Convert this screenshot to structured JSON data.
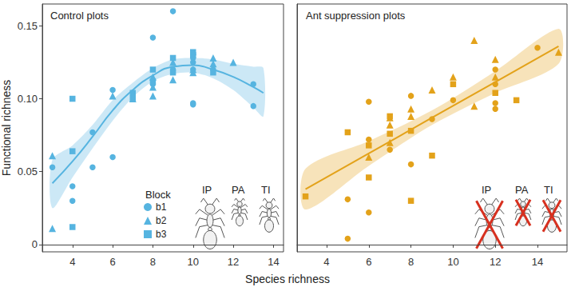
{
  "xlabel": "Species richness",
  "chart_data": [
    {
      "type": "scatter",
      "title": "Control plots",
      "ylabel": "Functional richness",
      "xlim": [
        2.5,
        14.5
      ],
      "xticks": [
        4,
        6,
        8,
        10,
        12,
        14
      ],
      "ylim": [
        -0.005,
        0.165
      ],
      "yticks": [
        0,
        0.05,
        {
          "value": 0.1,
          "label": "0.10"
        },
        0.15
      ],
      "grid": false,
      "color": "#56b4e0",
      "legend": "lower right",
      "legend_title": "Block",
      "annotations": [
        "IP",
        "PA",
        "TI"
      ],
      "series": [
        {
          "name": "b1",
          "marker": "circle",
          "x": [
            3,
            4,
            4,
            5,
            5,
            6,
            6,
            8,
            8,
            9,
            9,
            10,
            10,
            10,
            10,
            10,
            10,
            11,
            13,
            13
          ],
          "values": [
            0.053,
            0.04,
            0.03,
            0.053,
            0.077,
            0.06,
            0.106,
            0.142,
            0.11,
            0.16,
            0.12,
            0.13,
            0.128,
            0.125,
            0.12,
            0.097,
            0.096,
            0.12,
            0.11,
            0.095
          ]
        },
        {
          "name": "b2",
          "marker": "triangle",
          "x": [
            3,
            3,
            6,
            7,
            8,
            8,
            8,
            9,
            9,
            10,
            10,
            11,
            11,
            12
          ],
          "values": [
            0.061,
            0.011,
            0.102,
            0.1,
            0.102,
            0.108,
            0.115,
            0.125,
            0.113,
            0.118,
            0.12,
            0.128,
            0.124,
            0.125
          ]
        },
        {
          "name": "b3",
          "marker": "square",
          "x": [
            4,
            4,
            4,
            7,
            7,
            8,
            8,
            9,
            9,
            10,
            10,
            11
          ],
          "values": [
            0.1,
            0.064,
            0.012,
            0.104,
            0.1,
            0.12,
            0.112,
            0.128,
            0.118,
            0.13,
            0.132,
            0.118
          ]
        }
      ],
      "fit": {
        "x": [
          3,
          4,
          5,
          6,
          7,
          8,
          9,
          10,
          11,
          12,
          13,
          13.5
        ],
        "values": [
          0.042,
          0.057,
          0.074,
          0.092,
          0.106,
          0.116,
          0.122,
          0.123,
          0.12,
          0.115,
          0.108,
          0.104
        ],
        "lower": [
          0.025,
          0.046,
          0.066,
          0.085,
          0.101,
          0.112,
          0.117,
          0.118,
          0.114,
          0.106,
          0.094,
          0.088
        ],
        "upper": [
          0.058,
          0.068,
          0.082,
          0.099,
          0.111,
          0.121,
          0.127,
          0.128,
          0.127,
          0.124,
          0.122,
          0.121
        ]
      }
    },
    {
      "type": "scatter",
      "title": "Ant suppression plots",
      "xlim": [
        2.6,
        15.4
      ],
      "xticks": [
        4,
        6,
        8,
        10,
        12,
        14
      ],
      "ylim": [
        -0.005,
        0.165
      ],
      "yticks": [
        0,
        0.05,
        {
          "value": 0.1,
          "label": "0.10"
        },
        0.15
      ],
      "grid": false,
      "tick_labels": "x",
      "color": "#e3a21a",
      "annotations": [
        "IP",
        "PA",
        "TI"
      ],
      "series": [
        {
          "name": "b1",
          "marker": "circle",
          "x": [
            5,
            5,
            6,
            6,
            6,
            7,
            8,
            8,
            9,
            10,
            12,
            12,
            12,
            12,
            14
          ],
          "values": [
            0.004,
            0.031,
            0.098,
            0.022,
            0.072,
            0.065,
            0.055,
            0.102,
            0.086,
            0.099,
            0.097,
            0.093,
            0.12,
            0.11,
            0.135
          ]
        },
        {
          "name": "b2",
          "marker": "triangle",
          "x": [
            6,
            7,
            7,
            7,
            8,
            8,
            9,
            10,
            11,
            11,
            12,
            12,
            15
          ],
          "values": [
            0.06,
            0.087,
            0.082,
            0.07,
            0.093,
            0.088,
            0.106,
            0.115,
            0.14,
            0.095,
            0.127,
            0.115,
            0.132
          ]
        },
        {
          "name": "b3",
          "marker": "square",
          "x": [
            3,
            5,
            6,
            6,
            7,
            7,
            8,
            8,
            9,
            10,
            12,
            13
          ],
          "values": [
            0.033,
            0.077,
            0.046,
            0.068,
            0.076,
            0.088,
            0.078,
            0.03,
            0.061,
            0.11,
            0.104,
            0.099
          ]
        }
      ],
      "fit": {
        "x": [
          3,
          6,
          9,
          12,
          15
        ],
        "values": [
          0.038,
          0.0625,
          0.087,
          0.1115,
          0.136
        ],
        "lower": [
          0.024,
          0.054,
          0.082,
          0.104,
          0.124
        ],
        "upper": [
          0.052,
          0.071,
          0.092,
          0.119,
          0.148
        ]
      }
    }
  ]
}
